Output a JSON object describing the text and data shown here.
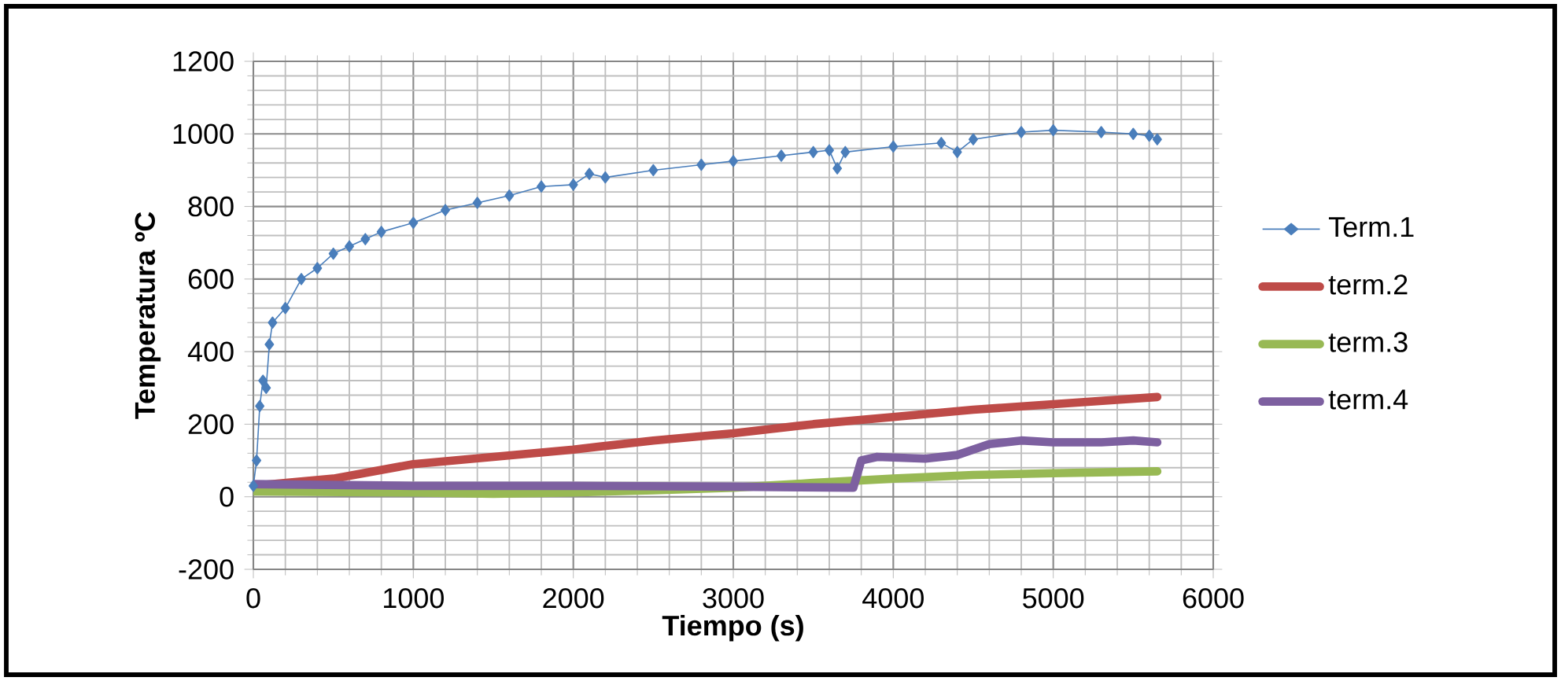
{
  "chart_data": {
    "type": "line",
    "xlabel": "Tiempo (s)",
    "ylabel": "Temperatura ºC",
    "xlim": [
      0,
      6000
    ],
    "xticks": [
      0,
      1000,
      2000,
      3000,
      4000,
      5000,
      6000
    ],
    "ylim": [
      -200,
      1200
    ],
    "yticks": [
      -200,
      0,
      200,
      400,
      600,
      800,
      1000,
      1200
    ],
    "grid": true,
    "legend": "right",
    "series": [
      {
        "name": "Term.1",
        "color": "#4a7ebb",
        "marker": "diamond",
        "x": [
          0,
          20,
          40,
          60,
          80,
          100,
          120,
          200,
          300,
          400,
          500,
          600,
          700,
          800,
          1000,
          1200,
          1400,
          1600,
          1800,
          2000,
          2100,
          2200,
          2500,
          2800,
          3000,
          3300,
          3500,
          3600,
          3650,
          3700,
          4000,
          4300,
          4400,
          4500,
          4800,
          5000,
          5300,
          5500,
          5600,
          5650
        ],
        "values": [
          30,
          100,
          250,
          320,
          300,
          420,
          480,
          520,
          600,
          630,
          670,
          690,
          710,
          730,
          755,
          790,
          810,
          830,
          855,
          860,
          890,
          880,
          900,
          915,
          925,
          940,
          950,
          955,
          905,
          950,
          965,
          975,
          950,
          985,
          1005,
          1010,
          1005,
          1000,
          995,
          985
        ]
      },
      {
        "name": "term.2",
        "color": "#be4b48",
        "marker": "none",
        "x": [
          0,
          500,
          1000,
          1500,
          2000,
          2500,
          3000,
          3500,
          4000,
          4500,
          5000,
          5650
        ],
        "values": [
          30,
          50,
          90,
          110,
          130,
          155,
          175,
          200,
          220,
          240,
          255,
          275
        ]
      },
      {
        "name": "term.3",
        "color": "#98b954",
        "marker": "none",
        "x": [
          0,
          1000,
          1500,
          2000,
          2500,
          3000,
          3500,
          4000,
          4500,
          5000,
          5650
        ],
        "values": [
          15,
          12,
          8,
          12,
          18,
          25,
          38,
          50,
          60,
          65,
          70
        ]
      },
      {
        "name": "term.4",
        "color": "#7d60a0",
        "marker": "none",
        "x": [
          0,
          1000,
          2000,
          3000,
          3750,
          3800,
          3900,
          4200,
          4400,
          4600,
          4800,
          5000,
          5300,
          5500,
          5650
        ],
        "values": [
          35,
          30,
          30,
          28,
          25,
          100,
          110,
          105,
          115,
          145,
          155,
          150,
          150,
          155,
          150
        ]
      }
    ]
  }
}
